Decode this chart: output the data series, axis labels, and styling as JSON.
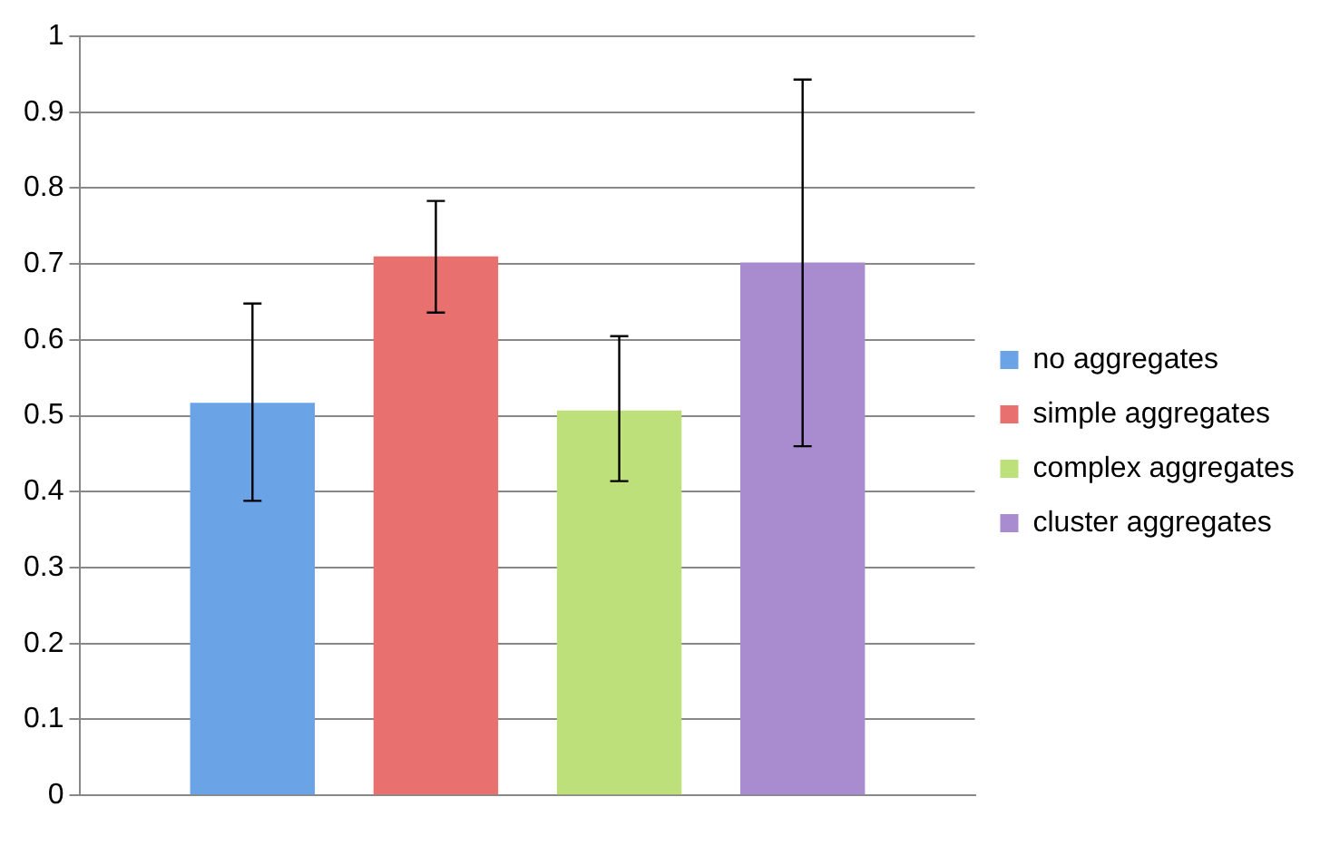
{
  "chart_data": {
    "type": "bar",
    "categories": [
      null
    ],
    "series": [
      {
        "name": "no aggregates",
        "color": "#6aa3e6",
        "values": [
          0.517
        ],
        "errors": [
          [
            0.388,
            0.648
          ]
        ]
      },
      {
        "name": "simple aggregates",
        "color": "#e8706e",
        "values": [
          0.71
        ],
        "errors": [
          [
            0.636,
            0.783
          ]
        ]
      },
      {
        "name": "complex aggregates",
        "color": "#bde07a",
        "values": [
          0.507
        ],
        "errors": [
          [
            0.414,
            0.605
          ]
        ]
      },
      {
        "name": "cluster aggregates",
        "color": "#a98bcf",
        "values": [
          0.702
        ],
        "errors": [
          [
            0.46,
            0.943
          ]
        ]
      }
    ],
    "ylim": [
      0,
      1
    ],
    "yticks": [
      0,
      0.1,
      0.2,
      0.3,
      0.4,
      0.5,
      0.6,
      0.7,
      0.8,
      0.9,
      1
    ],
    "grid": "y",
    "legend": "right"
  }
}
